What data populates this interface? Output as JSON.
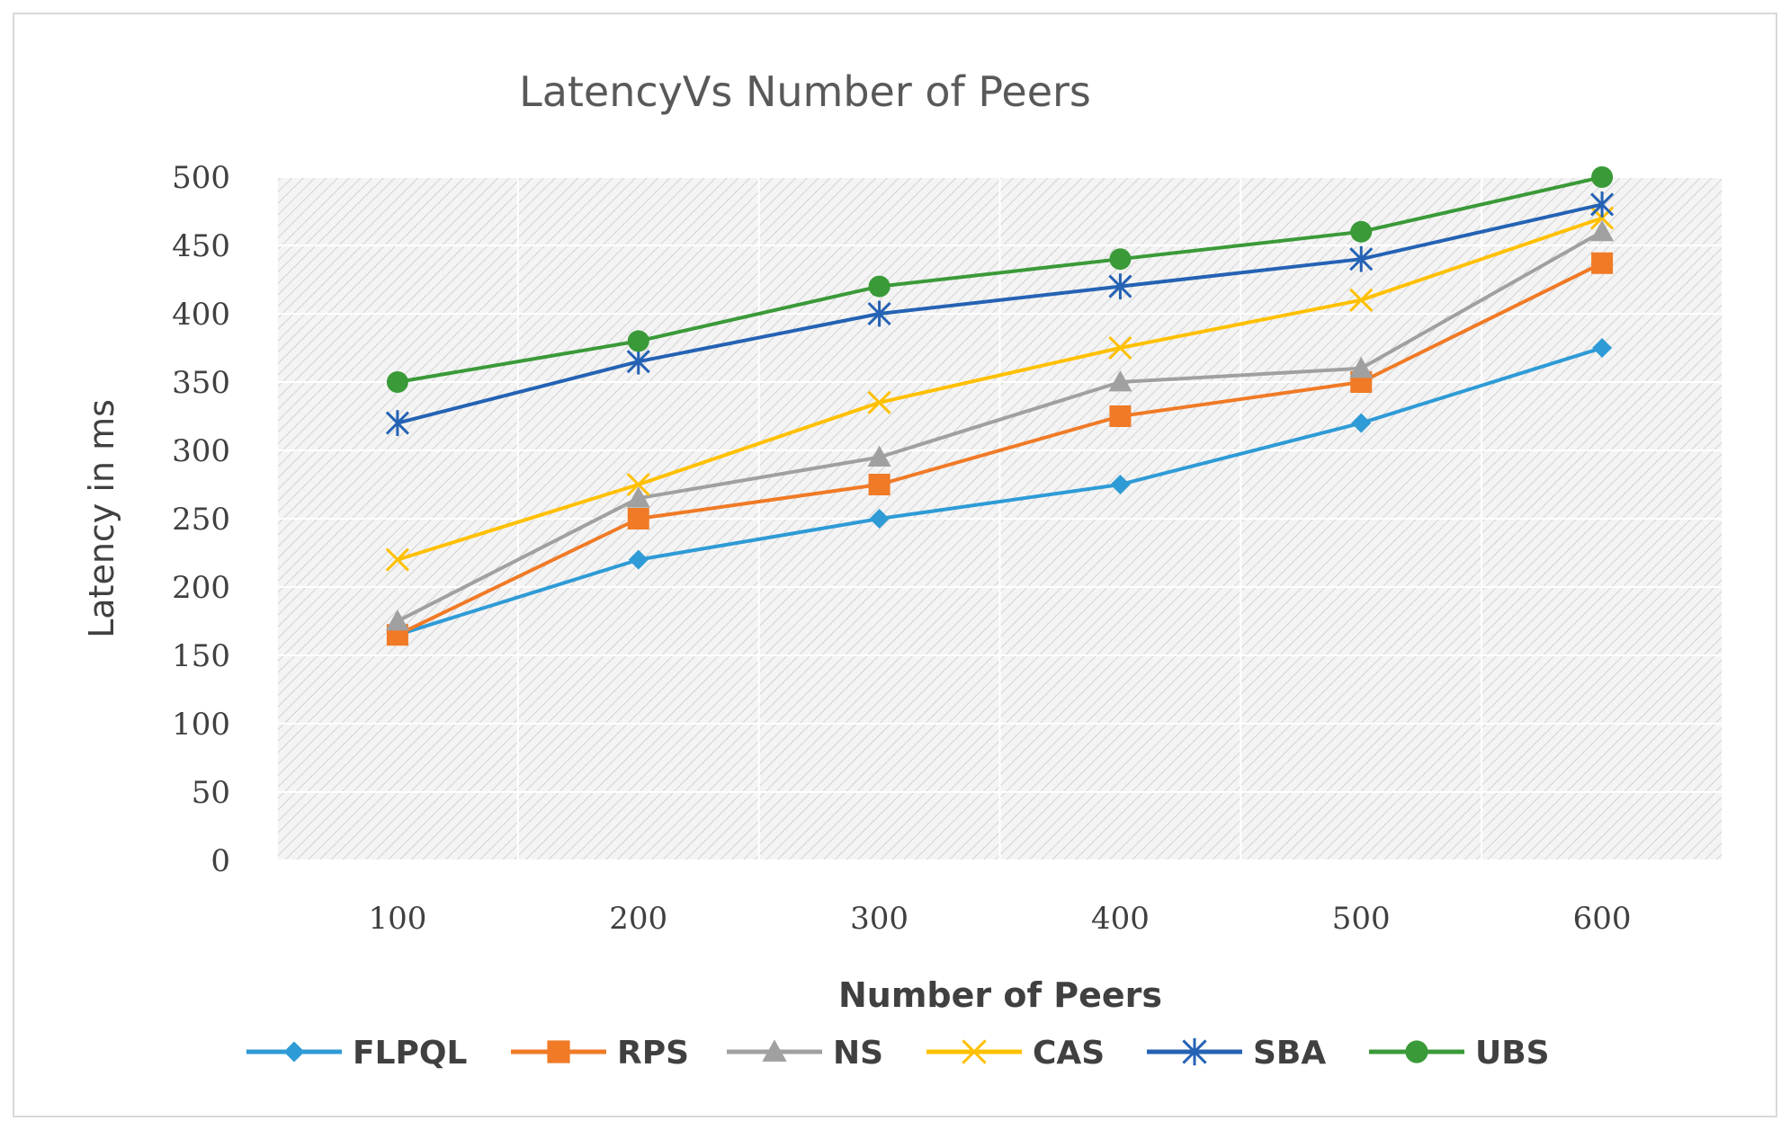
{
  "chart_data": {
    "type": "line",
    "title": "LatencyVs Number of Peers",
    "xlabel": "Number of Peers",
    "ylabel": "Latency in ms",
    "categories": [
      "100",
      "200",
      "300",
      "400",
      "500",
      "600"
    ],
    "ylim": [
      0,
      500
    ],
    "yticks": [
      "0",
      "50",
      "100",
      "150",
      "200",
      "250",
      "300",
      "350",
      "400",
      "450",
      "500"
    ],
    "grid": true,
    "legend_position": "bottom",
    "series": [
      {
        "name": "FLPQL",
        "color": "#2e9bd6",
        "marker": "diamond",
        "values": [
          165,
          220,
          250,
          275,
          320,
          375
        ]
      },
      {
        "name": "RPS",
        "color": "#f07a26",
        "marker": "square",
        "values": [
          165,
          250,
          275,
          325,
          350,
          437
        ]
      },
      {
        "name": "NS",
        "color": "#a0a0a0",
        "marker": "triangle",
        "values": [
          175,
          265,
          295,
          350,
          360,
          460
        ]
      },
      {
        "name": "CAS",
        "color": "#ffc000",
        "marker": "x",
        "values": [
          220,
          275,
          335,
          375,
          410,
          470
        ]
      },
      {
        "name": "SBA",
        "color": "#2462b4",
        "marker": "star",
        "values": [
          320,
          365,
          400,
          420,
          440,
          480
        ]
      },
      {
        "name": "UBS",
        "color": "#3a9a38",
        "marker": "circle",
        "values": [
          350,
          380,
          420,
          440,
          460,
          500
        ]
      }
    ]
  }
}
